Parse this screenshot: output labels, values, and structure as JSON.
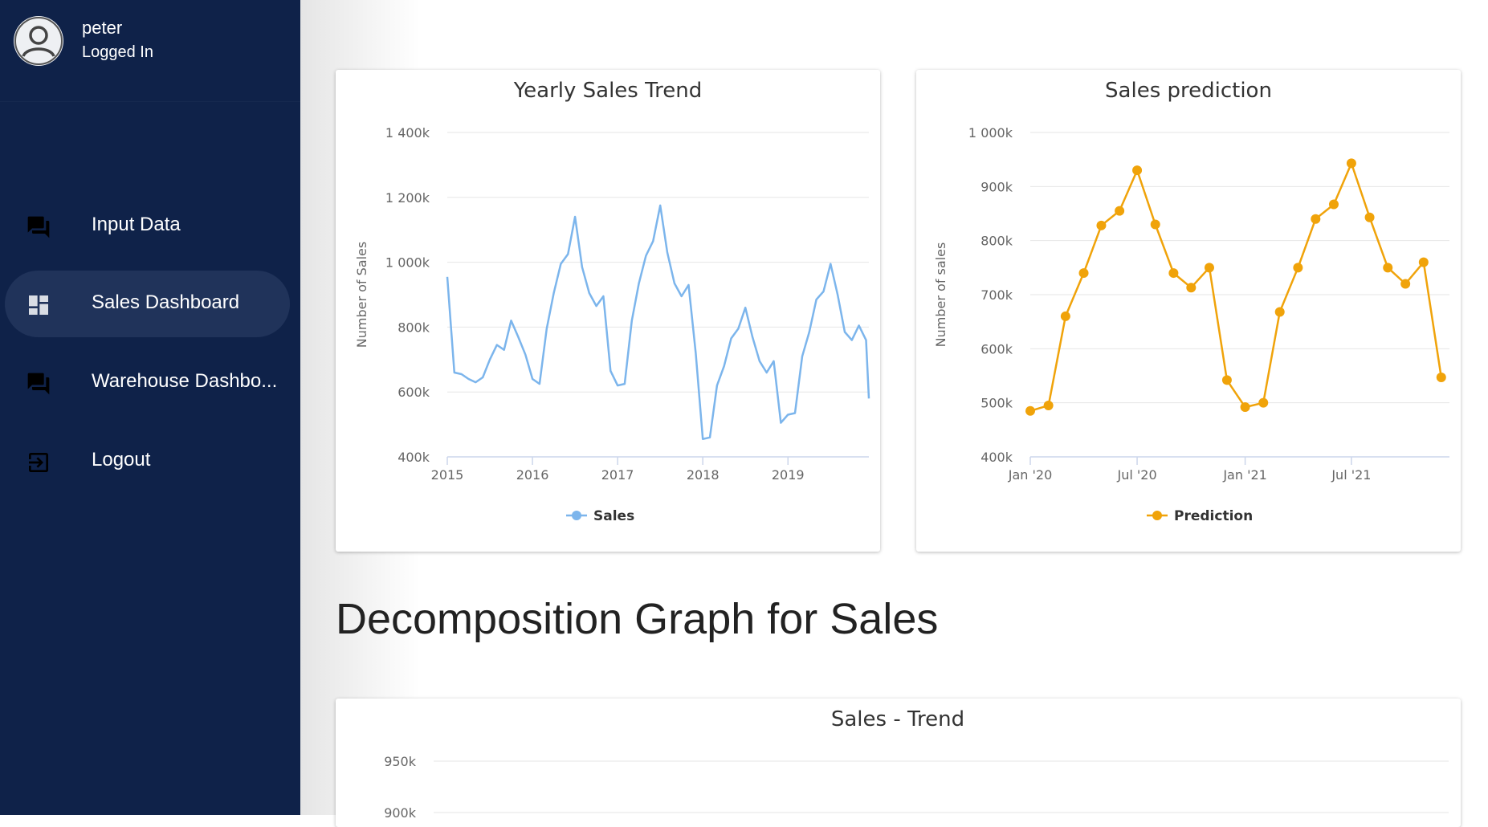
{
  "user": {
    "name": "peter",
    "status": "Logged In"
  },
  "nav": [
    {
      "label": "Input Data",
      "icon": "forum-icon",
      "active": false
    },
    {
      "label": "Sales Dashboard",
      "icon": "dashboard-icon",
      "active": true
    },
    {
      "label": "Warehouse Dashbo...",
      "icon": "forum-icon",
      "active": false
    },
    {
      "label": "Logout",
      "icon": "logout-icon",
      "active": false
    }
  ],
  "section_heading": "Decomposition Graph for Sales",
  "colors": {
    "sidebar": "#0f2249",
    "sidebar_active": "#20335a",
    "sales": "#7cb5ec",
    "prediction": "#f0a30a"
  },
  "chart_data": [
    {
      "id": "yearly",
      "type": "line",
      "title": "Yearly Sales Trend",
      "ylabel": "Number of Sales",
      "xlabel": "",
      "ylim": [
        400,
        1400
      ],
      "yticks": [
        400,
        600,
        800,
        1000,
        1200,
        1400
      ],
      "yticklabels": [
        "400k",
        "600k",
        "800k",
        "1 000k",
        "1 200k",
        "1 400k"
      ],
      "xlim": [
        2015,
        2019.95
      ],
      "xticks": [
        2015,
        2016,
        2017,
        2018,
        2019
      ],
      "xticklabels": [
        "2015",
        "2016",
        "2017",
        "2018",
        "2019"
      ],
      "grid": true,
      "legend": "bottom",
      "series": [
        {
          "name": "Sales",
          "color": "#7cb5ec",
          "markers": false,
          "x": [
            2015.0,
            2015.083,
            2015.167,
            2015.25,
            2015.333,
            2015.417,
            2015.5,
            2015.583,
            2015.667,
            2015.75,
            2015.833,
            2015.917,
            2016.0,
            2016.083,
            2016.167,
            2016.25,
            2016.333,
            2016.417,
            2016.5,
            2016.583,
            2016.667,
            2016.75,
            2016.833,
            2016.917,
            2017.0,
            2017.083,
            2017.167,
            2017.25,
            2017.333,
            2017.417,
            2017.5,
            2017.583,
            2017.667,
            2017.75,
            2017.833,
            2017.917,
            2018.0,
            2018.083,
            2018.167,
            2018.25,
            2018.333,
            2018.417,
            2018.5,
            2018.583,
            2018.667,
            2018.75,
            2018.833,
            2018.917,
            2019.0,
            2019.083,
            2019.167,
            2019.25,
            2019.333,
            2019.417,
            2019.5,
            2019.583,
            2019.667,
            2019.75,
            2019.833,
            2019.917,
            2019.95
          ],
          "values": [
            955,
            660,
            655,
            640,
            630,
            645,
            700,
            745,
            730,
            820,
            770,
            715,
            640,
            625,
            795,
            905,
            995,
            1025,
            1140,
            985,
            905,
            865,
            895,
            665,
            620,
            625,
            820,
            935,
            1020,
            1065,
            1175,
            1030,
            935,
            895,
            930,
            720,
            455,
            460,
            620,
            680,
            765,
            795,
            860,
            770,
            695,
            660,
            695,
            505,
            530,
            535,
            710,
            785,
            885,
            910,
            995,
            900,
            785,
            760,
            805,
            760,
            580
          ]
        }
      ]
    },
    {
      "id": "prediction",
      "type": "line",
      "title": "Sales prediction",
      "ylabel": "Number of sales",
      "xlabel": "",
      "ylim": [
        400,
        1000
      ],
      "yticks": [
        400,
        500,
        600,
        700,
        800,
        900,
        1000
      ],
      "yticklabels": [
        "400k",
        "500k",
        "600k",
        "700k",
        "800k",
        "900k",
        "1 000k"
      ],
      "xlim": [
        "2020-01-01",
        "2021-12-15"
      ],
      "xticks": [
        "2020-01-01",
        "2020-07-01",
        "2021-01-01",
        "2021-07-01"
      ],
      "xticklabels": [
        "Jan '20",
        "Jul '20",
        "Jan '21",
        "Jul '21"
      ],
      "grid": true,
      "legend": "bottom",
      "series": [
        {
          "name": "Prediction",
          "color": "#f0a30a",
          "markers": true,
          "x": [
            "2020-01-01",
            "2020-02-01",
            "2020-03-01",
            "2020-04-01",
            "2020-05-01",
            "2020-06-01",
            "2020-07-01",
            "2020-08-01",
            "2020-09-01",
            "2020-10-01",
            "2020-11-01",
            "2020-12-01",
            "2021-01-01",
            "2021-02-01",
            "2021-03-01",
            "2021-04-01",
            "2021-05-01",
            "2021-06-01",
            "2021-07-01",
            "2021-08-01",
            "2021-09-01",
            "2021-10-01",
            "2021-11-01",
            "2021-12-01"
          ],
          "values": [
            485,
            495,
            660,
            740,
            828,
            855,
            930,
            830,
            740,
            713,
            750,
            542,
            492,
            500,
            668,
            750,
            840,
            867,
            943,
            843,
            750,
            720,
            760,
            547
          ]
        }
      ]
    },
    {
      "id": "trend",
      "type": "line",
      "title": "Sales - Trend",
      "ylabel": "",
      "xlabel": "",
      "yticks": [
        900,
        950
      ],
      "yticklabels": [
        "900k",
        "950k"
      ],
      "grid": true,
      "series": []
    }
  ]
}
